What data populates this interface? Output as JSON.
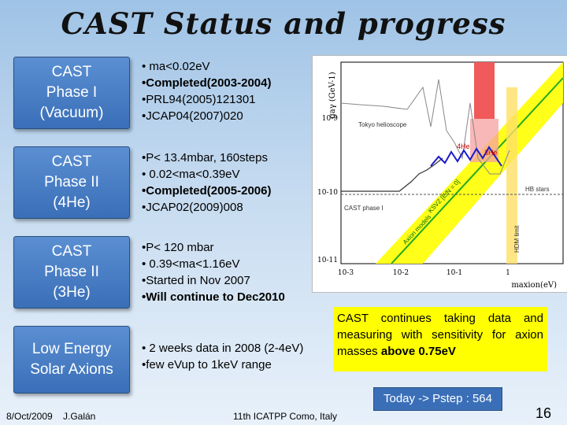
{
  "title": "CAST Status and progress",
  "phases": [
    {
      "lines": [
        "CAST",
        "Phase I",
        "(Vacuum)"
      ]
    },
    {
      "lines": [
        "CAST",
        "Phase II",
        "(4He)"
      ]
    },
    {
      "lines": [
        "CAST",
        "Phase II",
        "(3He)"
      ]
    },
    {
      "lines": [
        "Low Energy",
        "Solar Axions"
      ]
    }
  ],
  "bullets": [
    [
      "• ma<0.02eV",
      "•Completed(2003-2004)",
      "•PRL94(2005)121301",
      "•JCAP04(2007)020"
    ],
    [
      "•P< 13.4mbar, 160steps",
      "• 0.02<ma<0.39eV",
      "•Completed(2005-2006)",
      "•JCAP02(2009)008"
    ],
    [
      "•P< 120 mbar",
      "• 0.39<ma<1.16eV",
      "•Started in Nov 2007",
      "•Will continue to Dec2010"
    ],
    [
      "• 2 weeks data in 2008 (2-4eV)",
      "•few eVup to 1keV range"
    ]
  ],
  "plot": {
    "y_label": "gaγ (GeV-1)",
    "x_label": "maxion(eV)",
    "y_ticks": [
      "10-9",
      "10-10",
      "10-11"
    ],
    "x_ticks": [
      "10-3",
      "10-2",
      "10-1",
      "1"
    ],
    "labels": {
      "tokyo": "Tokyo helioscope",
      "he4": "4He",
      "he3": "3He",
      "hb": "HB stars",
      "cast1": "CAST phase I",
      "ksvz": "KSVZ [E/N = 0]",
      "axion": "Axion models",
      "hdm": "HDM limit"
    },
    "colors": {
      "band": "#ffff1a",
      "line": "#22aa22",
      "red": "#f05a5a",
      "blue": "#1a1acc"
    }
  },
  "note": {
    "text_plain": "CAST continues taking data and measuring with sensitivity for axion masses",
    "text_bold": "above 0.75eV"
  },
  "today": "Today -> Pstep : 564",
  "footer": {
    "date": "8/Oct/2009",
    "author": "J.Galán",
    "event": "11th ICATPP Como, Italy",
    "page": "16"
  }
}
